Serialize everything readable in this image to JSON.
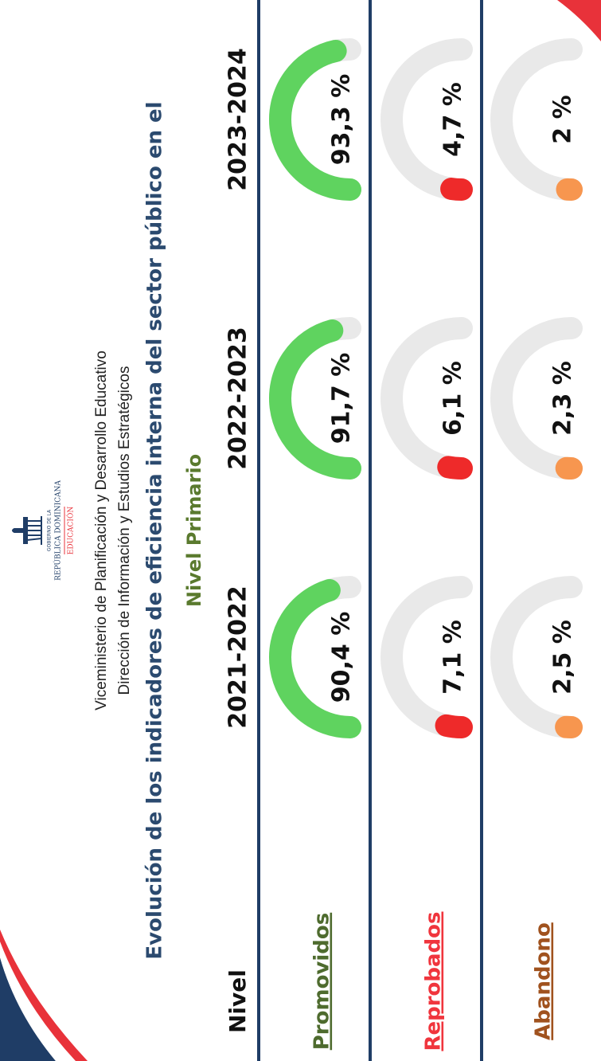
{
  "chart_data": {
    "type": "gauge",
    "logo_top": "GOBIERNO DE LA",
    "logo_name": "REPÚBLICA DOMINICANA",
    "logo_sub": "EDUCACIÓN",
    "header_1": "Viceministerio de Planificación y Desarrollo Educativo",
    "header_2": "Dirección de Información y Estudios Estratégicos",
    "title": "Evolución de los indicadores de eficiencia interna del sector público en el",
    "subtitle": "Nivel Primario",
    "row_header": "Nivel",
    "categories": [
      "2021-2022",
      "2022-2023",
      "2023-2024"
    ],
    "ylim": [
      0,
      100
    ],
    "series": [
      {
        "name": "Promovidos",
        "color": "#5fd35f",
        "label_color": "#4e6b2e",
        "values": [
          90.4,
          91.7,
          93.3
        ],
        "value_labels": [
          "90,4 %",
          "91,7 %",
          "93,3 %"
        ]
      },
      {
        "name": "Reprobados",
        "color": "#ee2a2a",
        "label_color": "#f0353d",
        "values": [
          7.1,
          6.1,
          4.7
        ],
        "value_labels": [
          "7,1 %",
          "6,1 %",
          "4,7 %"
        ]
      },
      {
        "name": "Abandono",
        "color": "#f7964f",
        "label_color": "#a0521e",
        "values": [
          2.5,
          2.3,
          2
        ],
        "value_labels": [
          "2,5 %",
          "2,3 %",
          "2 %"
        ]
      }
    ]
  }
}
